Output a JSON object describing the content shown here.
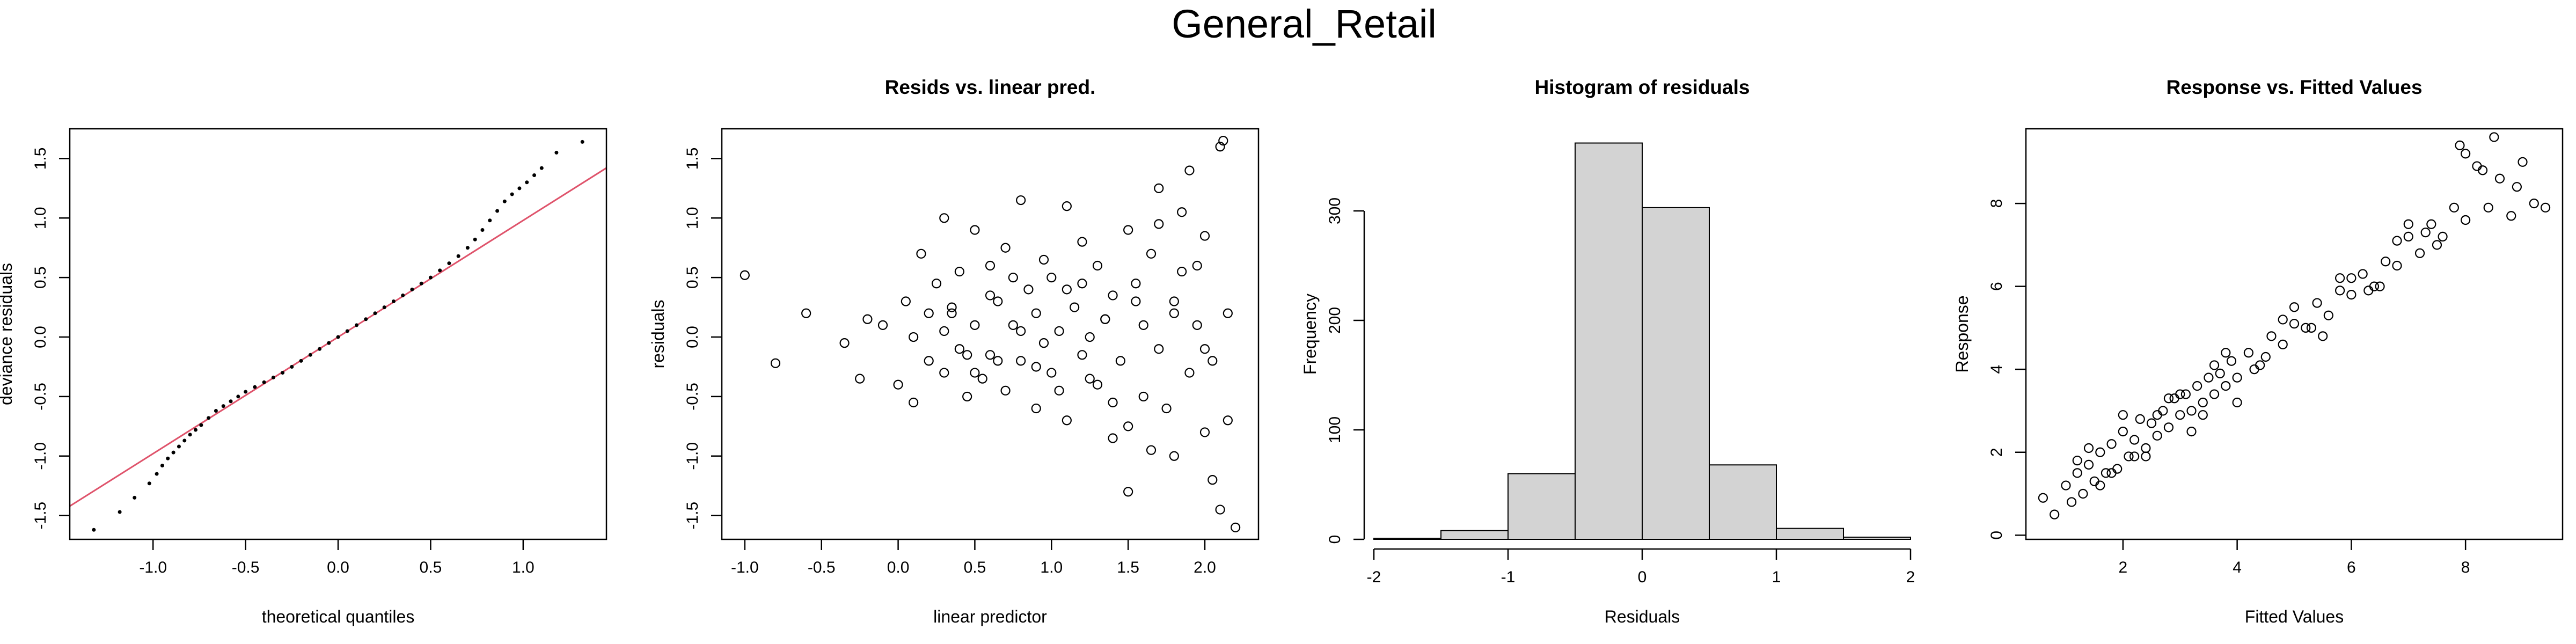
{
  "figure": {
    "title": "General_Retail"
  },
  "chart_data": [
    {
      "type": "scatter",
      "title": "",
      "xlabel": "theoretical quantiles",
      "ylabel": "deviance residuals",
      "xlim": [
        -1.45,
        1.45
      ],
      "ylim": [
        -1.7,
        1.75
      ],
      "xticks": [
        "-1.0",
        "-0.5",
        "0.0",
        "0.5",
        "1.0"
      ],
      "xtick_values": [
        -1.0,
        -0.5,
        0.0,
        0.5,
        1.0
      ],
      "yticks": [
        "-1.5",
        "-1.0",
        "-0.5",
        "0.0",
        "0.5",
        "1.0",
        "1.5"
      ],
      "ytick_values": [
        -1.5,
        -1.0,
        -0.5,
        0.0,
        0.5,
        1.0,
        1.5
      ],
      "reference_line": {
        "slope": 0.98,
        "intercept": 0.0,
        "color": "#DF536B"
      },
      "series": [
        {
          "marker": "dot",
          "x": [
            -1.32,
            -1.18,
            -1.1,
            -1.02,
            -0.98,
            -0.95,
            -0.92,
            -0.89,
            -0.86,
            -0.83,
            -0.8,
            -0.77,
            -0.74,
            -0.7,
            -0.66,
            -0.62,
            -0.58,
            -0.54,
            -0.5,
            -0.45,
            -0.4,
            -0.35,
            -0.3,
            -0.25,
            -0.2,
            -0.15,
            -0.1,
            -0.05,
            0.0,
            0.05,
            0.1,
            0.15,
            0.2,
            0.25,
            0.3,
            0.35,
            0.4,
            0.45,
            0.5,
            0.55,
            0.6,
            0.65,
            0.7,
            0.74,
            0.78,
            0.82,
            0.86,
            0.9,
            0.94,
            0.98,
            1.02,
            1.06,
            1.1,
            1.18,
            1.32
          ],
          "y": [
            -1.62,
            -1.47,
            -1.35,
            -1.23,
            -1.15,
            -1.08,
            -1.02,
            -0.97,
            -0.92,
            -0.87,
            -0.82,
            -0.78,
            -0.74,
            -0.68,
            -0.62,
            -0.58,
            -0.54,
            -0.5,
            -0.46,
            -0.42,
            -0.38,
            -0.34,
            -0.3,
            -0.25,
            -0.2,
            -0.15,
            -0.1,
            -0.05,
            0.0,
            0.05,
            0.1,
            0.15,
            0.2,
            0.25,
            0.3,
            0.35,
            0.4,
            0.45,
            0.5,
            0.56,
            0.62,
            0.68,
            0.75,
            0.82,
            0.9,
            0.98,
            1.06,
            1.14,
            1.2,
            1.25,
            1.3,
            1.36,
            1.42,
            1.55,
            1.64
          ]
        }
      ]
    },
    {
      "type": "scatter",
      "title": "Resids vs. linear pred.",
      "xlabel": "linear predictor",
      "ylabel": "residuals",
      "xlim": [
        -1.15,
        2.35
      ],
      "ylim": [
        -1.7,
        1.75
      ],
      "xticks": [
        "-1.0",
        "-0.5",
        "0.0",
        "0.5",
        "1.0",
        "1.5",
        "2.0"
      ],
      "xtick_values": [
        -1.0,
        -0.5,
        0.0,
        0.5,
        1.0,
        1.5,
        2.0
      ],
      "yticks": [
        "-1.5",
        "-1.0",
        "-0.5",
        "0.0",
        "0.5",
        "1.0",
        "1.5"
      ],
      "ytick_values": [
        -1.5,
        -1.0,
        -0.5,
        0.0,
        0.5,
        1.0,
        1.5
      ],
      "series": [
        {
          "marker": "circle",
          "x": [
            -1.0,
            -0.8,
            -0.6,
            -0.35,
            -0.25,
            -0.2,
            -0.1,
            0.0,
            0.05,
            0.1,
            0.15,
            0.2,
            0.25,
            0.3,
            0.3,
            0.35,
            0.4,
            0.4,
            0.45,
            0.5,
            0.5,
            0.55,
            0.6,
            0.6,
            0.65,
            0.7,
            0.7,
            0.75,
            0.8,
            0.8,
            0.85,
            0.9,
            0.9,
            0.95,
            1.0,
            1.0,
            1.05,
            1.1,
            1.1,
            1.15,
            1.2,
            1.2,
            1.25,
            1.3,
            1.3,
            1.35,
            1.4,
            1.4,
            1.45,
            1.5,
            1.5,
            1.55,
            1.6,
            1.6,
            1.65,
            1.7,
            1.7,
            1.75,
            1.8,
            1.8,
            1.85,
            1.9,
            1.9,
            1.95,
            2.0,
            2.0,
            2.05,
            2.1,
            2.1,
            2.15,
            2.2,
            0.1,
            0.3,
            0.6,
            0.9,
            1.2,
            1.5,
            1.8,
            2.05,
            2.12,
            0.45,
            0.75,
            1.05,
            1.35,
            1.65,
            1.95,
            0.2,
            0.5,
            0.8,
            1.1,
            1.4,
            1.7,
            2.0,
            0.35,
            0.65,
            0.95,
            1.25,
            1.55,
            1.85,
            2.15
          ],
          "y": [
            0.52,
            -0.22,
            0.2,
            -0.05,
            -0.35,
            0.15,
            0.1,
            -0.4,
            0.3,
            0.0,
            0.7,
            -0.2,
            0.45,
            1.0,
            -0.3,
            0.2,
            0.55,
            -0.1,
            -0.5,
            0.9,
            0.1,
            -0.35,
            0.6,
            -0.15,
            0.3,
            0.75,
            -0.45,
            0.1,
            -0.2,
            1.15,
            0.4,
            -0.6,
            0.2,
            -0.05,
            0.5,
            -0.3,
            0.05,
            1.1,
            -0.7,
            0.25,
            -0.15,
            0.8,
            0.0,
            -0.4,
            0.6,
            0.15,
            -0.85,
            0.35,
            -0.2,
            0.9,
            -1.3,
            0.45,
            0.1,
            -0.5,
            0.7,
            -0.1,
            1.25,
            -0.6,
            0.3,
            -1.0,
            0.55,
            -0.3,
            1.4,
            0.1,
            -0.8,
            0.85,
            -0.2,
            1.6,
            -1.45,
            0.2,
            -1.6,
            -0.55,
            0.05,
            0.35,
            -0.25,
            0.45,
            -0.75,
            0.2,
            -1.2,
            1.65,
            -0.15,
            0.5,
            -0.45,
            0.15,
            -0.95,
            0.6,
            0.2,
            -0.3,
            0.05,
            0.4,
            -0.55,
            0.95,
            -0.1,
            0.25,
            -0.2,
            0.65,
            -0.35,
            0.3,
            1.05,
            -0.7
          ]
        }
      ]
    },
    {
      "type": "bar",
      "title": "Histogram of residuals",
      "xlabel": "Residuals",
      "ylabel": "Frequency",
      "xlim": [
        -2,
        2
      ],
      "ylim": [
        0,
        375
      ],
      "xticks": [
        "-2",
        "-1",
        "0",
        "1",
        "2"
      ],
      "xtick_values": [
        -2,
        -1,
        0,
        1,
        2
      ],
      "yticks": [
        "0",
        "100",
        "200",
        "300"
      ],
      "ytick_values": [
        0,
        100,
        200,
        300
      ],
      "bin_edges": [
        -2.0,
        -1.5,
        -1.0,
        -0.5,
        0.0,
        0.5,
        1.0,
        1.5,
        2.0
      ],
      "values": [
        1,
        8,
        60,
        362,
        303,
        68,
        10,
        2
      ],
      "bar_color": "#D3D3D3"
    },
    {
      "type": "scatter",
      "title": "Response vs. Fitted Values",
      "xlabel": "Fitted Values",
      "ylabel": "Response",
      "xlim": [
        0.3,
        9.7
      ],
      "ylim": [
        -0.1,
        9.8
      ],
      "xticks": [
        "2",
        "4",
        "6",
        "8"
      ],
      "xtick_values": [
        2,
        4,
        6,
        8
      ],
      "yticks": [
        "0",
        "2",
        "4",
        "6",
        "8"
      ],
      "ytick_values": [
        0,
        2,
        4,
        6,
        8
      ],
      "series": [
        {
          "marker": "circle",
          "x": [
            0.6,
            0.8,
            1.0,
            1.1,
            1.2,
            1.3,
            1.4,
            1.5,
            1.6,
            1.7,
            1.8,
            1.9,
            2.0,
            2.1,
            2.2,
            2.3,
            2.4,
            2.5,
            2.6,
            2.7,
            2.8,
            2.9,
            3.0,
            3.1,
            3.2,
            3.3,
            3.4,
            3.5,
            3.6,
            3.7,
            3.8,
            3.9,
            4.0,
            4.2,
            4.4,
            4.6,
            4.8,
            5.0,
            5.2,
            5.4,
            5.6,
            5.8,
            6.0,
            6.2,
            6.4,
            6.6,
            6.8,
            7.0,
            7.2,
            7.4,
            7.6,
            7.8,
            8.0,
            8.2,
            8.4,
            8.6,
            8.8,
            9.0,
            9.2,
            1.2,
            1.6,
            2.0,
            2.4,
            2.8,
            3.2,
            3.6,
            4.0,
            4.5,
            5.0,
            5.5,
            6.0,
            6.5,
            7.0,
            7.5,
            8.0,
            8.5,
            1.4,
            1.8,
            2.2,
            2.6,
            3.0,
            3.4,
            3.8,
            4.3,
            4.8,
            5.3,
            5.8,
            6.3,
            6.8,
            7.3,
            7.9,
            8.3,
            8.9,
            9.4
          ],
          "y": [
            0.9,
            0.5,
            1.2,
            0.8,
            1.5,
            1.0,
            1.7,
            1.3,
            2.0,
            1.5,
            2.2,
            1.6,
            2.5,
            1.9,
            2.3,
            2.8,
            2.1,
            2.7,
            2.4,
            3.0,
            2.6,
            3.3,
            2.9,
            3.4,
            3.0,
            3.6,
            3.2,
            3.8,
            3.4,
            3.9,
            3.6,
            4.2,
            3.8,
            4.4,
            4.1,
            4.8,
            4.6,
            5.1,
            5.0,
            5.6,
            5.3,
            5.9,
            5.8,
            6.3,
            6.0,
            6.6,
            6.5,
            7.2,
            6.8,
            7.5,
            7.2,
            7.9,
            7.6,
            8.9,
            7.9,
            8.6,
            7.7,
            9.0,
            8.0,
            1.8,
            1.2,
            2.9,
            1.9,
            3.3,
            2.5,
            4.1,
            3.2,
            4.3,
            5.5,
            4.8,
            6.2,
            6.0,
            7.5,
            7.0,
            9.2,
            9.6,
            2.1,
            1.5,
            1.9,
            2.9,
            3.4,
            2.9,
            4.4,
            4.0,
            5.2,
            5.0,
            6.2,
            5.9,
            7.1,
            7.3,
            9.4,
            8.8,
            8.4,
            7.9
          ]
        }
      ]
    }
  ]
}
